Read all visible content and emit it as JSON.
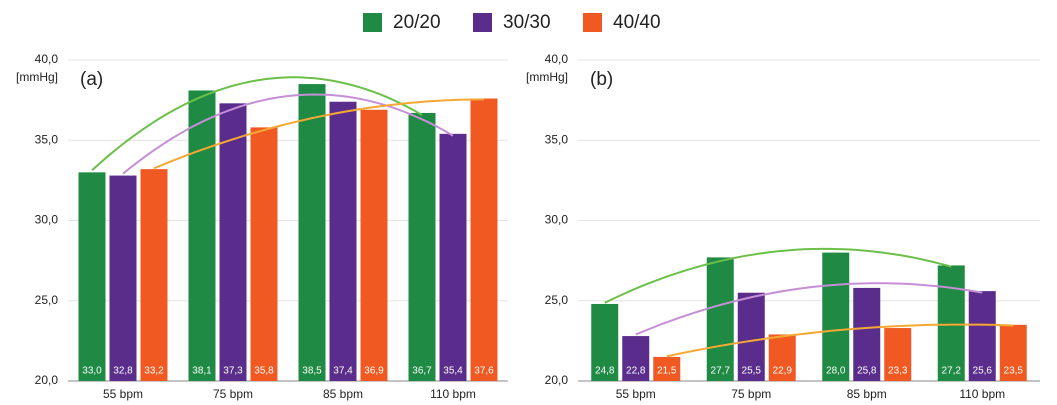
{
  "chart_data": [
    {
      "type": "bar",
      "annotation": "(a)",
      "y_label": "[mmHg]",
      "categories": [
        "55 bpm",
        "75 bpm",
        "85 bpm",
        "110 bpm"
      ],
      "ylim": [
        20,
        40
      ],
      "yticks": [
        {
          "value": 20,
          "label": "20,0"
        },
        {
          "value": 25,
          "label": "25,0"
        },
        {
          "value": 30,
          "label": "30,0"
        },
        {
          "value": 35,
          "label": "35,0"
        },
        {
          "value": 40,
          "label": "40,0"
        }
      ],
      "grid": true,
      "trendline": true,
      "series": [
        {
          "name": "20/20",
          "color": "#1e8a43",
          "trend_color": "#6cc04a",
          "values": [
            33.0,
            38.1,
            38.5,
            36.7
          ],
          "value_labels": [
            "33,0",
            "38,1",
            "38,5",
            "36,7"
          ]
        },
        {
          "name": "30/30",
          "color": "#5a2d8c",
          "trend_color": "#c58fd6",
          "values": [
            32.8,
            37.3,
            37.4,
            35.4
          ],
          "value_labels": [
            "32,8",
            "37,3",
            "37,4",
            "35,4"
          ]
        },
        {
          "name": "40/40",
          "color": "#f05a22",
          "trend_color": "#f5a833",
          "values": [
            33.2,
            35.8,
            36.9,
            37.6
          ],
          "value_labels": [
            "33,2",
            "35,8",
            "36,9",
            "37,6"
          ]
        }
      ]
    },
    {
      "type": "bar",
      "annotation": "(b)",
      "y_label": "[mmHg]",
      "categories": [
        "55 bpm",
        "75 bpm",
        "85 bpm",
        "110 bpm"
      ],
      "ylim": [
        20,
        40
      ],
      "yticks": [
        {
          "value": 20,
          "label": "20,0"
        },
        {
          "value": 25,
          "label": "25,0"
        },
        {
          "value": 30,
          "label": "30,0"
        },
        {
          "value": 35,
          "label": "35,0"
        },
        {
          "value": 40,
          "label": "40,0"
        }
      ],
      "grid": true,
      "trendline": true,
      "series": [
        {
          "name": "20/20",
          "color": "#1e8a43",
          "trend_color": "#6cc04a",
          "values": [
            24.8,
            27.7,
            28.0,
            27.2
          ],
          "value_labels": [
            "24,8",
            "27,7",
            "28,0",
            "27,2"
          ]
        },
        {
          "name": "30/30",
          "color": "#5a2d8c",
          "trend_color": "#c58fd6",
          "values": [
            22.8,
            25.5,
            25.8,
            25.6
          ],
          "value_labels": [
            "22,8",
            "25,5",
            "25,8",
            "25,6"
          ]
        },
        {
          "name": "40/40",
          "color": "#f05a22",
          "trend_color": "#f5a833",
          "values": [
            21.5,
            22.9,
            23.3,
            23.5
          ],
          "value_labels": [
            "21,5",
            "22,9",
            "23,3",
            "23,5"
          ]
        }
      ]
    }
  ]
}
